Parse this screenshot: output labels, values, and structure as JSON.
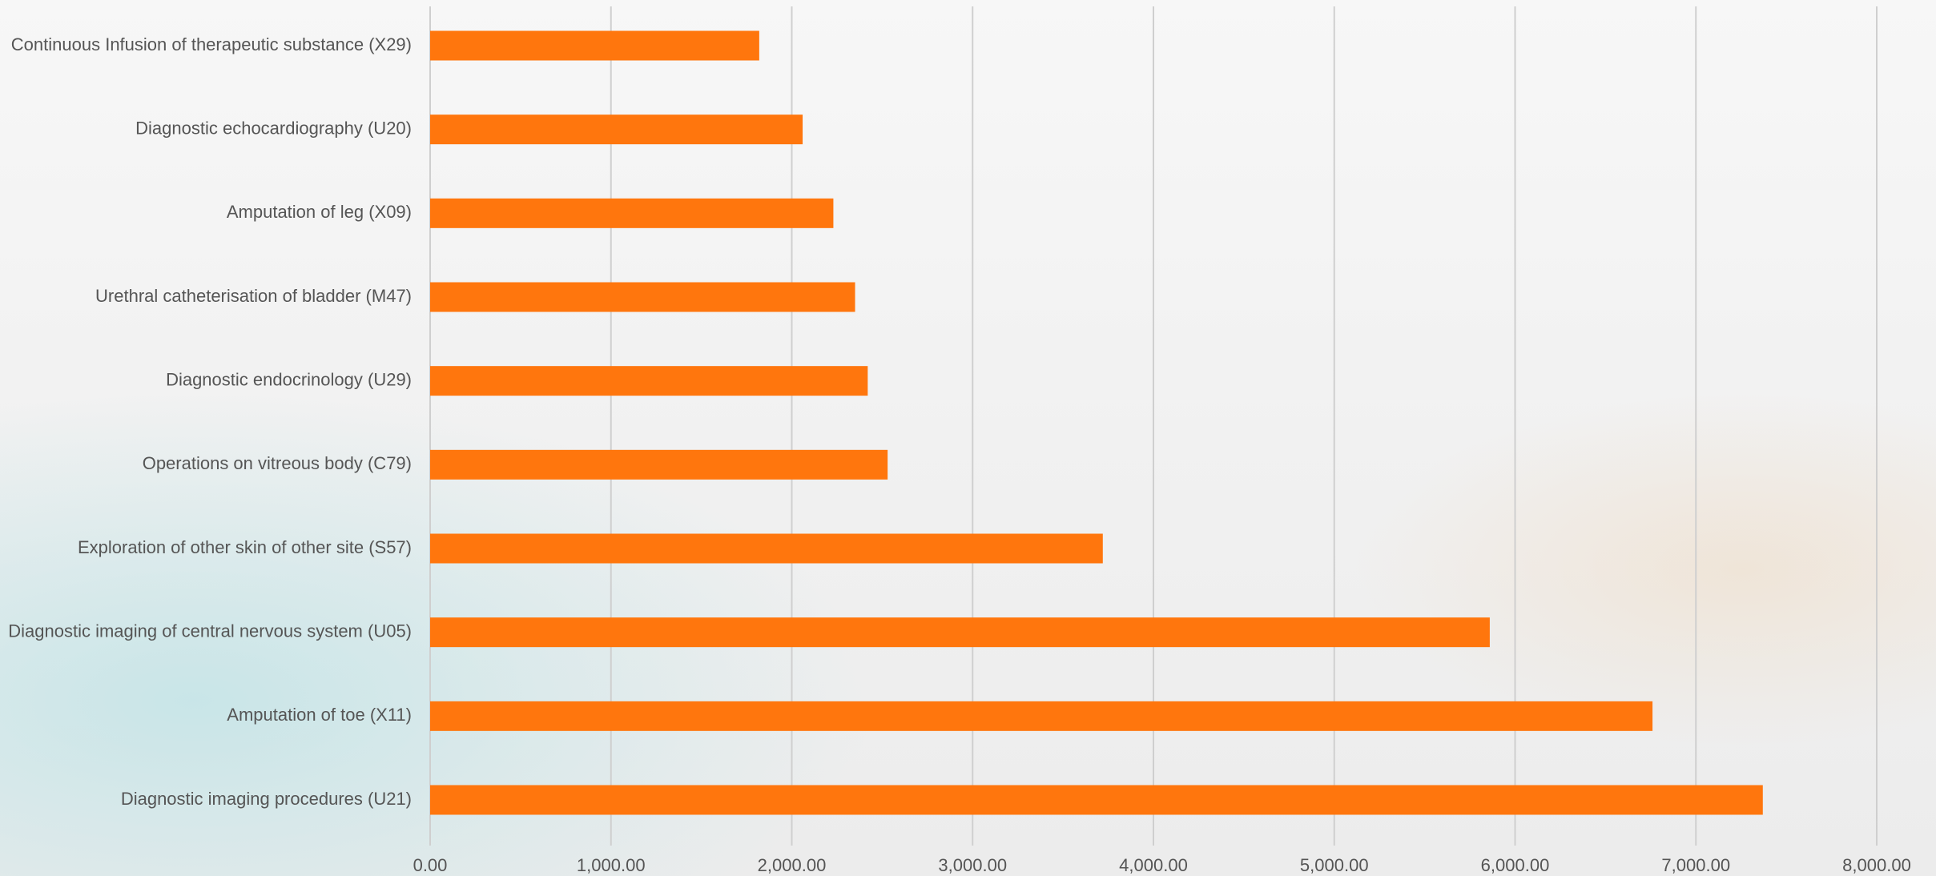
{
  "chart_data": {
    "type": "hbar",
    "categories": [
      "Continuous Infusion of therapeutic substance (X29)",
      "Diagnostic echocardiography (U20)",
      "Amputation of leg (X09)",
      "Urethral catheterisation of bladder (M47)",
      "Diagnostic endocrinology (U29)",
      "Operations on vitreous body (C79)",
      "Exploration of other skin of other site (S57)",
      "Diagnostic imaging of central nervous system (U05)",
      "Amputation of toe (X11)",
      "Diagnostic imaging procedures (U21)"
    ],
    "values": [
      1820,
      2060,
      2230,
      2350,
      2420,
      2530,
      3720,
      5860,
      6760,
      7370
    ],
    "color": "#ff760d",
    "xlim": [
      0,
      8000
    ],
    "xticks": [
      {
        "value": 0,
        "label": "0.00"
      },
      {
        "value": 1000,
        "label": "1,000.00"
      },
      {
        "value": 2000,
        "label": "2,000.00"
      },
      {
        "value": 3000,
        "label": "3,000.00"
      },
      {
        "value": 4000,
        "label": "4,000.00"
      },
      {
        "value": 5000,
        "label": "5,000.00"
      },
      {
        "value": 6000,
        "label": "6,000.00"
      },
      {
        "value": 7000,
        "label": "7,000.00"
      },
      {
        "value": 8000,
        "label": "8,000.00"
      }
    ],
    "grid": true
  }
}
